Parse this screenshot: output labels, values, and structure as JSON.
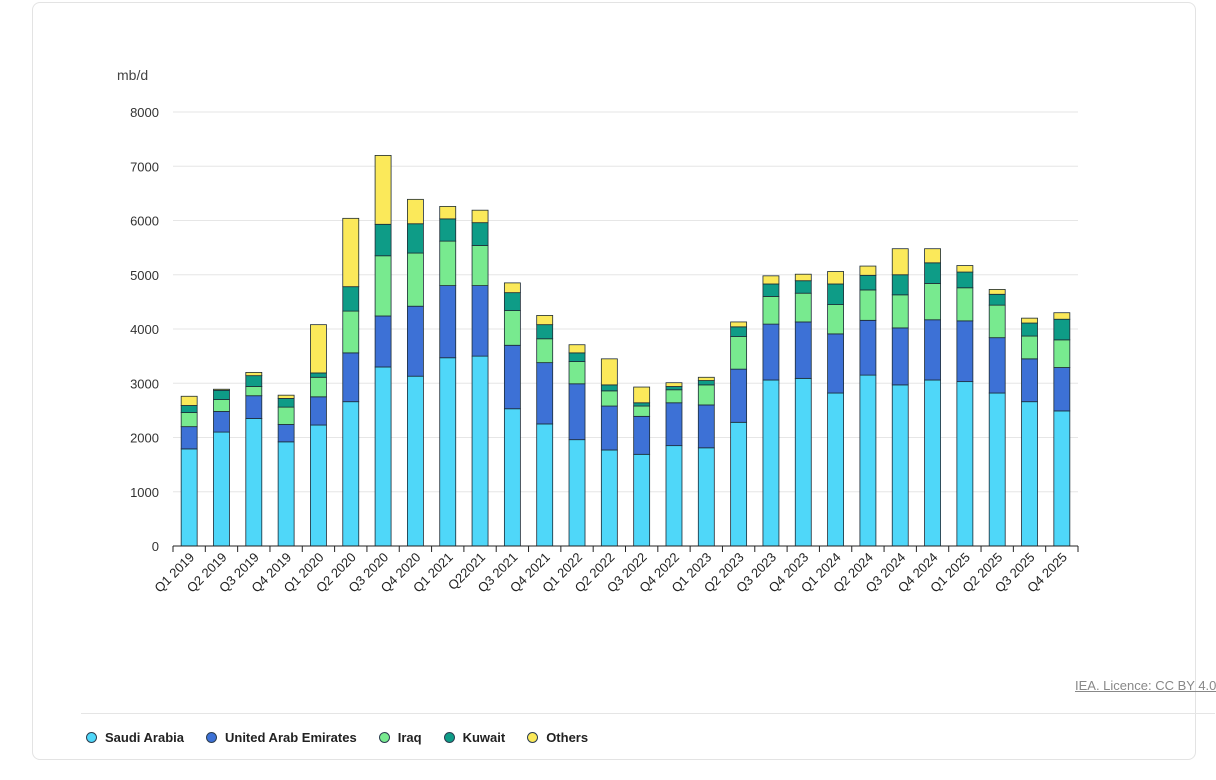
{
  "licence": "IEA. Licence: CC BY 4.0",
  "colors": {
    "Saudi Arabia": "#4fd7f9",
    "United Arab Emirates": "#3d71d6",
    "Iraq": "#78ea8f",
    "Kuwait": "#0e9c87",
    "Others": "#fbe95a"
  },
  "legend": [
    {
      "label": "Saudi Arabia",
      "color": "#4fd7f9"
    },
    {
      "label": "United Arab Emirates",
      "color": "#3d71d6"
    },
    {
      "label": "Iraq",
      "color": "#78ea8f"
    },
    {
      "label": "Kuwait",
      "color": "#0e9c87"
    },
    {
      "label": "Others",
      "color": "#fbe95a"
    }
  ],
  "chart_data": {
    "type": "bar",
    "stacked": true,
    "title": "",
    "xlabel": "",
    "ylabel": "mb/d",
    "ylim": [
      0,
      8000
    ],
    "yticks": [
      0,
      1000,
      2000,
      3000,
      4000,
      5000,
      6000,
      7000,
      8000
    ],
    "grid": true,
    "categories": [
      "Q1 2019",
      "Q2 2019",
      "Q3 2019",
      "Q4 2019",
      "Q1 2020",
      "Q2 2020",
      "Q3 2020",
      "Q4 2020",
      "Q1 2021",
      "Q22021",
      "Q3 2021",
      "Q4 2021",
      "Q1 2022",
      "Q2 2022",
      "Q3 2022",
      "Q4 2022",
      "Q1 2023",
      "Q2 2023",
      "Q3 2023",
      "Q4 2023",
      "Q1 2024",
      "Q2 2024",
      "Q3 2024",
      "Q4 2024",
      "Q1 2025",
      "Q2 2025",
      "Q3 2025",
      "Q4 2025"
    ],
    "series": [
      {
        "name": "Saudi Arabia",
        "values": [
          1790,
          2100,
          2350,
          1920,
          2230,
          2660,
          3300,
          3130,
          3470,
          3500,
          2530,
          2250,
          1960,
          1770,
          1690,
          1850,
          1810,
          2280,
          3060,
          3090,
          2820,
          3150,
          2970,
          3060,
          3030,
          2820,
          2660,
          2490
        ]
      },
      {
        "name": "United Arab Emirates",
        "values": [
          410,
          380,
          420,
          320,
          520,
          900,
          940,
          1290,
          1330,
          1300,
          1170,
          1130,
          1030,
          810,
          700,
          790,
          790,
          980,
          1030,
          1040,
          1090,
          1010,
          1050,
          1110,
          1120,
          1020,
          790,
          800
        ]
      },
      {
        "name": "Iraq",
        "values": [
          260,
          220,
          170,
          320,
          360,
          770,
          1110,
          980,
          820,
          740,
          640,
          440,
          410,
          280,
          190,
          240,
          370,
          600,
          510,
          530,
          540,
          560,
          610,
          670,
          610,
          600,
          420,
          510
        ]
      },
      {
        "name": "Kuwait",
        "values": [
          130,
          170,
          200,
          160,
          80,
          450,
          580,
          540,
          410,
          420,
          330,
          260,
          160,
          110,
          60,
          60,
          80,
          180,
          230,
          230,
          380,
          270,
          370,
          380,
          290,
          200,
          240,
          380
        ]
      },
      {
        "name": "Others",
        "values": [
          170,
          20,
          60,
          60,
          890,
          1260,
          1270,
          450,
          230,
          230,
          180,
          170,
          150,
          480,
          290,
          70,
          60,
          90,
          150,
          120,
          230,
          170,
          480,
          260,
          120,
          90,
          90,
          120
        ]
      }
    ]
  }
}
